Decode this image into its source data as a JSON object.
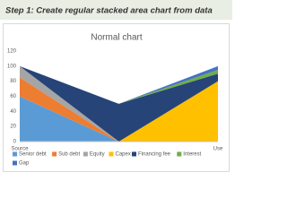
{
  "banner": "Step 1: Create regular stacked area chart from data",
  "chart_data": {
    "type": "stacked-area",
    "title": "Normal chart",
    "categories": [
      "Source",
      null,
      "Use"
    ],
    "series": [
      {
        "name": "Senior debt",
        "color": "#5b9bd5",
        "values": [
          60,
          0,
          0
        ]
      },
      {
        "name": "Sub debt",
        "color": "#ed7d31",
        "values": [
          25,
          0,
          0
        ]
      },
      {
        "name": "Equity",
        "color": "#a5a5a5",
        "values": [
          15,
          0,
          0
        ]
      },
      {
        "name": "Capex",
        "color": "#ffc000",
        "values": [
          0,
          0,
          80
        ]
      },
      {
        "name": "Financing fee",
        "color": "#264478",
        "values": [
          0,
          50,
          10
        ]
      },
      {
        "name": "Interest",
        "color": "#70ad47",
        "values": [
          0,
          0,
          5
        ]
      },
      {
        "name": "Gap",
        "color": "#4472c4",
        "values": [
          0,
          0,
          5
        ]
      }
    ],
    "ylim": [
      0,
      120
    ],
    "yticks": [
      0,
      20,
      40,
      60,
      80,
      100,
      120
    ],
    "grid": false
  }
}
